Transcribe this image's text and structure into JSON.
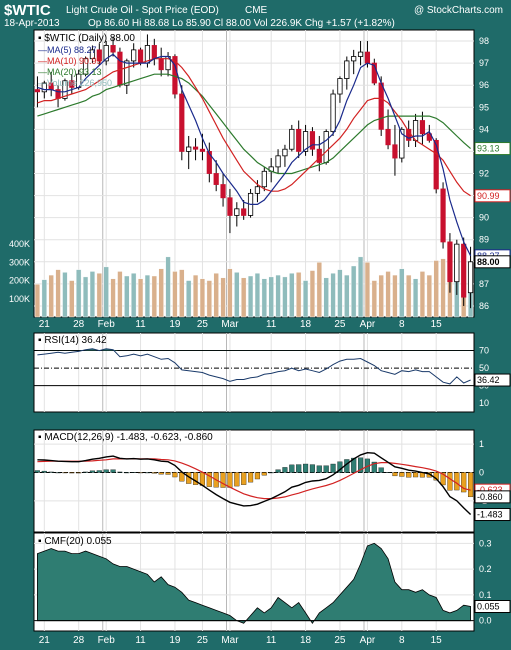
{
  "header": {
    "symbol": "$WTIC",
    "name": "Light Crude Oil - Spot Price (EOD)",
    "exchange": "CME",
    "watermark": "@ StockCharts.com",
    "date": "18-Apr-2013",
    "ohlc": "Op 86.60  Hi 88.68  Lo 85.90  Cl 88.00  Vol 226.9K  Chg +1.57 (+1.82%)"
  },
  "colors": {
    "background": "#1f6b69",
    "panel": "#ffffff",
    "up_candle": "#ffffff",
    "down_candle": "#c8102e",
    "ma5": "#1a2a8c",
    "ma10": "#d22222",
    "ma20": "#2d7a2d",
    "volume_up": "#8fbcbc",
    "volume_down": "#d9b08c",
    "macd_hist": "#e8a020",
    "cmf_fill": "#2f7d72",
    "rsi_line": "#1a3a6a"
  },
  "chart_data": [
    {
      "type": "candlestick",
      "title": "$WTIC (Daily) 88.00",
      "legend": [
        {
          "label": "MA(5) 88.27",
          "color": "#1a2a8c"
        },
        {
          "label": "MA(10) 90.99",
          "color": "#d22222"
        },
        {
          "label": "MA(20) 93.13",
          "color": "#2d7a2d"
        },
        {
          "label": "Volume 226,950",
          "color": "#8fbcbc"
        }
      ],
      "ylim": [
        85.5,
        98.5
      ],
      "y_ticks": [
        86,
        87,
        88,
        89,
        90,
        91,
        92,
        93,
        94,
        95,
        96,
        97,
        98
      ],
      "right_labels": [
        {
          "value": 93.13,
          "text": "93.13",
          "color": "#2d7a2d"
        },
        {
          "value": 90.99,
          "text": "90.99",
          "color": "#d22222"
        },
        {
          "value": 88.27,
          "text": "88.27",
          "color": "#1a2a8c"
        },
        {
          "value": 88.0,
          "text": "88.00",
          "color": "#000000"
        }
      ],
      "x_ticks": [
        {
          "i": 1,
          "label": "21"
        },
        {
          "i": 6,
          "label": "28"
        },
        {
          "i": 10,
          "label": "Feb"
        },
        {
          "i": 15,
          "label": "11"
        },
        {
          "i": 20,
          "label": "19"
        },
        {
          "i": 24,
          "label": "25"
        },
        {
          "i": 28,
          "label": "Mar"
        },
        {
          "i": 34,
          "label": "11"
        },
        {
          "i": 39,
          "label": "18"
        },
        {
          "i": 44,
          "label": "25"
        },
        {
          "i": 48,
          "label": "Apr"
        },
        {
          "i": 53,
          "label": "8"
        },
        {
          "i": 58,
          "label": "15"
        }
      ],
      "month_lines": [
        10,
        28,
        48
      ],
      "candles": [
        [
          95.8,
          96.4,
          95.0,
          95.7
        ],
        [
          95.7,
          96.2,
          95.4,
          96.1
        ],
        [
          96.1,
          96.6,
          95.5,
          95.8
        ],
        [
          95.8,
          96.0,
          95.0,
          95.4
        ],
        [
          95.4,
          96.3,
          95.3,
          96.2
        ],
        [
          96.2,
          96.5,
          95.6,
          95.9
        ],
        [
          95.9,
          96.7,
          95.8,
          96.5
        ],
        [
          96.5,
          97.3,
          96.4,
          97.2
        ],
        [
          97.2,
          97.8,
          97.0,
          97.6
        ],
        [
          97.6,
          97.9,
          96.9,
          97.1
        ],
        [
          97.1,
          98.0,
          96.9,
          97.8
        ],
        [
          97.8,
          98.2,
          97.3,
          97.5
        ],
        [
          97.5,
          97.7,
          95.9,
          96.0
        ],
        [
          96.0,
          97.2,
          95.6,
          97.1
        ],
        [
          97.1,
          97.9,
          96.8,
          97.6
        ],
        [
          97.6,
          97.7,
          96.9,
          97.0
        ],
        [
          97.0,
          98.3,
          96.8,
          97.8
        ],
        [
          97.8,
          98.1,
          96.9,
          97.2
        ],
        [
          97.2,
          97.7,
          96.4,
          96.7
        ],
        [
          96.7,
          97.5,
          96.4,
          97.3
        ],
        [
          97.3,
          97.4,
          95.4,
          95.6
        ],
        [
          95.6,
          96.0,
          92.6,
          93.0
        ],
        [
          93.0,
          93.7,
          92.2,
          93.2
        ],
        [
          93.2,
          93.6,
          92.6,
          93.1
        ],
        [
          93.1,
          93.8,
          92.6,
          93.0
        ],
        [
          93.0,
          93.4,
          91.6,
          92.0
        ],
        [
          92.0,
          92.6,
          91.2,
          91.5
        ],
        [
          91.5,
          92.0,
          90.5,
          90.9
        ],
        [
          90.9,
          91.3,
          89.3,
          90.1
        ],
        [
          90.1,
          90.7,
          89.6,
          90.4
        ],
        [
          90.4,
          90.8,
          89.9,
          90.1
        ],
        [
          90.1,
          91.3,
          90.0,
          91.1
        ],
        [
          91.1,
          91.7,
          90.7,
          91.4
        ],
        [
          91.4,
          92.3,
          91.2,
          92.1
        ],
        [
          92.1,
          92.7,
          91.6,
          92.3
        ],
        [
          92.3,
          93.1,
          92.0,
          92.8
        ],
        [
          92.8,
          93.3,
          92.3,
          93.1
        ],
        [
          93.1,
          94.2,
          93.0,
          94.0
        ],
        [
          94.0,
          94.4,
          92.7,
          93.0
        ],
        [
          93.0,
          94.2,
          92.8,
          93.9
        ],
        [
          93.9,
          94.1,
          92.8,
          93.1
        ],
        [
          93.1,
          93.7,
          92.1,
          92.5
        ],
        [
          92.5,
          94.0,
          92.4,
          93.9
        ],
        [
          93.9,
          95.8,
          93.7,
          95.6
        ],
        [
          95.6,
          96.4,
          95.2,
          96.3
        ],
        [
          96.3,
          97.3,
          95.8,
          97.1
        ],
        [
          97.1,
          97.6,
          96.5,
          97.3
        ],
        [
          97.3,
          98.0,
          96.9,
          97.5
        ],
        [
          97.5,
          98.0,
          96.8,
          97.0
        ],
        [
          97.0,
          97.2,
          96.0,
          96.1
        ],
        [
          96.1,
          96.4,
          93.7,
          94.0
        ],
        [
          94.0,
          94.9,
          93.1,
          93.3
        ],
        [
          93.3,
          94.2,
          91.9,
          92.7
        ],
        [
          92.7,
          94.1,
          92.5,
          94.0
        ],
        [
          94.0,
          94.4,
          93.2,
          93.5
        ],
        [
          93.5,
          94.7,
          93.2,
          94.4
        ],
        [
          94.4,
          94.8,
          93.3,
          93.8
        ],
        [
          93.8,
          94.2,
          93.4,
          93.5
        ],
        [
          93.5,
          93.6,
          91.1,
          91.3
        ],
        [
          91.3,
          91.6,
          88.6,
          88.9
        ],
        [
          88.9,
          89.3,
          86.6,
          87.1
        ],
        [
          87.1,
          89.0,
          86.5,
          88.8
        ],
        [
          88.8,
          89.1,
          86.0,
          86.4
        ],
        [
          86.6,
          88.68,
          85.9,
          88.0
        ]
      ],
      "ma5": [
        95.9,
        95.8,
        95.8,
        95.7,
        95.7,
        95.8,
        95.9,
        96.3,
        96.6,
        96.9,
        97.2,
        97.4,
        97.1,
        97.0,
        97.0,
        97.0,
        97.0,
        97.2,
        97.3,
        97.3,
        96.9,
        95.8,
        95.1,
        94.4,
        93.6,
        92.9,
        92.5,
        92.0,
        91.6,
        91.2,
        90.7,
        90.6,
        90.6,
        90.8,
        91.2,
        91.6,
        92.0,
        92.5,
        92.8,
        93.1,
        93.3,
        93.3,
        93.5,
        93.8,
        94.4,
        95.3,
        96.0,
        96.8,
        97.0,
        96.9,
        96.1,
        95.4,
        94.6,
        93.8,
        93.6,
        93.7,
        93.7,
        93.9,
        93.3,
        92.2,
        90.8,
        89.8,
        88.9,
        88.27
      ],
      "ma10": [
        95.2,
        95.3,
        95.3,
        95.4,
        95.5,
        95.6,
        95.7,
        95.8,
        96.0,
        96.2,
        96.4,
        96.6,
        96.7,
        96.8,
        96.9,
        97.0,
        97.1,
        97.2,
        97.2,
        97.2,
        97.1,
        96.8,
        96.4,
        95.9,
        95.4,
        94.8,
        94.2,
        93.6,
        93.1,
        92.6,
        92.1,
        91.8,
        91.5,
        91.3,
        91.2,
        91.2,
        91.3,
        91.5,
        91.8,
        92.1,
        92.4,
        92.7,
        93.0,
        93.3,
        93.6,
        94.0,
        94.5,
        94.9,
        95.3,
        95.4,
        95.4,
        95.2,
        94.8,
        94.4,
        93.9,
        93.5,
        93.3,
        93.1,
        92.9,
        92.6,
        92.1,
        91.6,
        91.2,
        90.99
      ],
      "ma20": [
        94.6,
        94.7,
        94.8,
        94.9,
        95.0,
        95.1,
        95.2,
        95.3,
        95.5,
        95.6,
        95.8,
        95.9,
        96.0,
        96.1,
        96.2,
        96.3,
        96.4,
        96.5,
        96.5,
        96.5,
        96.4,
        96.3,
        96.1,
        95.8,
        95.5,
        95.1,
        94.7,
        94.3,
        93.9,
        93.5,
        93.1,
        92.8,
        92.5,
        92.3,
        92.1,
        92.0,
        92.0,
        92.0,
        92.1,
        92.2,
        92.3,
        92.4,
        92.5,
        92.7,
        93.0,
        93.3,
        93.6,
        93.9,
        94.2,
        94.4,
        94.5,
        94.6,
        94.6,
        94.6,
        94.6,
        94.6,
        94.6,
        94.6,
        94.5,
        94.3,
        94.0,
        93.7,
        93.4,
        93.13
      ]
    },
    {
      "type": "bar",
      "title": "Volume",
      "ylim": [
        0,
        450000
      ],
      "y_ticks": [
        {
          "value": 100000,
          "label": "100K"
        },
        {
          "value": 200000,
          "label": "200K"
        },
        {
          "value": 300000,
          "label": "300K"
        },
        {
          "value": 400000,
          "label": "400K"
        }
      ],
      "values": [
        180000,
        205000,
        230000,
        260000,
        245000,
        200000,
        260000,
        220000,
        250000,
        240000,
        275000,
        210000,
        250000,
        225000,
        240000,
        210000,
        230000,
        225000,
        265000,
        330000,
        250000,
        260000,
        200000,
        230000,
        210000,
        200000,
        240000,
        215000,
        265000,
        245000,
        215000,
        225000,
        240000,
        210000,
        220000,
        230000,
        220000,
        240000,
        245000,
        200000,
        255000,
        300000,
        215000,
        240000,
        260000,
        230000,
        280000,
        330000,
        300000,
        200000,
        230000,
        250000,
        230000,
        265000,
        230000,
        210000,
        250000,
        230000,
        310000,
        320000,
        265000,
        275000,
        290000,
        226950
      ]
    },
    {
      "type": "line",
      "title": "RSI(14) 36.42",
      "ylim": [
        0,
        90
      ],
      "y_ticks": [
        10,
        30,
        50,
        70
      ],
      "reference_lines": [
        30,
        50,
        70
      ],
      "last_label": "36.42",
      "values": [
        65,
        66,
        67,
        68,
        67,
        68,
        69,
        71,
        72,
        70,
        72,
        71,
        63,
        64,
        66,
        64,
        66,
        63,
        60,
        61,
        56,
        48,
        47,
        46,
        45,
        42,
        40,
        38,
        35,
        37,
        37,
        39,
        40,
        43,
        44,
        46,
        47,
        50,
        47,
        49,
        47,
        45,
        49,
        54,
        58,
        60,
        60,
        61,
        57,
        53,
        47,
        45,
        43,
        47,
        46,
        48,
        46,
        46,
        40,
        34,
        32,
        40,
        33,
        36.42
      ]
    },
    {
      "type": "bar+line",
      "title": "MACD(12,26,9) -1.483, -0.623, -0.860",
      "ylim": [
        -2.1,
        1.5
      ],
      "y_ticks": [
        -1,
        0,
        1
      ],
      "right_labels": [
        {
          "value": -0.623,
          "text": "-0.623",
          "color": "#d22222"
        },
        {
          "value": -0.86,
          "text": "-0.860",
          "color": "#000000"
        },
        {
          "value": -1.483,
          "text": "-1.483",
          "color": "#000000"
        }
      ],
      "macd": [
        0.45,
        0.44,
        0.42,
        0.4,
        0.39,
        0.38,
        0.38,
        0.42,
        0.47,
        0.5,
        0.55,
        0.58,
        0.5,
        0.48,
        0.49,
        0.47,
        0.48,
        0.45,
        0.4,
        0.38,
        0.25,
        0.02,
        -0.15,
        -0.3,
        -0.45,
        -0.62,
        -0.78,
        -0.92,
        -1.05,
        -1.12,
        -1.18,
        -1.17,
        -1.12,
        -1.02,
        -0.92,
        -0.8,
        -0.68,
        -0.52,
        -0.45,
        -0.35,
        -0.3,
        -0.28,
        -0.22,
        -0.08,
        0.1,
        0.3,
        0.48,
        0.62,
        0.7,
        0.68,
        0.52,
        0.36,
        0.2,
        0.15,
        0.08,
        0.05,
        0.0,
        -0.05,
        -0.22,
        -0.5,
        -0.85,
        -1.0,
        -1.25,
        -1.483
      ],
      "signal": [
        0.38,
        0.39,
        0.4,
        0.4,
        0.4,
        0.4,
        0.4,
        0.4,
        0.41,
        0.43,
        0.45,
        0.48,
        0.48,
        0.48,
        0.48,
        0.48,
        0.48,
        0.48,
        0.46,
        0.45,
        0.41,
        0.33,
        0.24,
        0.13,
        0.01,
        -0.12,
        -0.26,
        -0.39,
        -0.52,
        -0.64,
        -0.75,
        -0.83,
        -0.89,
        -0.92,
        -0.92,
        -0.9,
        -0.86,
        -0.79,
        -0.73,
        -0.65,
        -0.58,
        -0.52,
        -0.46,
        -0.38,
        -0.28,
        -0.16,
        -0.03,
        0.1,
        0.22,
        0.31,
        0.35,
        0.35,
        0.32,
        0.29,
        0.25,
        0.21,
        0.17,
        0.12,
        0.05,
        -0.06,
        -0.22,
        -0.38,
        -0.56,
        -0.623
      ],
      "histogram": [
        0.07,
        0.05,
        0.02,
        0.0,
        -0.01,
        -0.02,
        -0.02,
        0.02,
        0.06,
        0.07,
        0.1,
        0.1,
        0.02,
        0.0,
        0.01,
        -0.01,
        0.0,
        -0.03,
        -0.06,
        -0.07,
        -0.16,
        -0.31,
        -0.39,
        -0.43,
        -0.46,
        -0.5,
        -0.52,
        -0.53,
        -0.53,
        -0.48,
        -0.43,
        -0.34,
        -0.23,
        -0.1,
        0.0,
        0.1,
        0.18,
        0.27,
        0.28,
        0.3,
        0.28,
        0.24,
        0.24,
        0.3,
        0.38,
        0.46,
        0.51,
        0.52,
        0.48,
        0.37,
        0.17,
        0.01,
        -0.12,
        -0.14,
        -0.17,
        -0.16,
        -0.17,
        -0.17,
        -0.27,
        -0.44,
        -0.63,
        -0.62,
        -0.69,
        -0.86
      ]
    },
    {
      "type": "area",
      "title": "CMF(20) 0.055",
      "ylim": [
        -0.04,
        0.34
      ],
      "y_ticks": [
        0.0,
        0.1,
        0.2,
        0.3
      ],
      "last_label": "0.055",
      "values": [
        0.26,
        0.27,
        0.28,
        0.27,
        0.27,
        0.26,
        0.26,
        0.27,
        0.26,
        0.25,
        0.24,
        0.22,
        0.21,
        0.21,
        0.2,
        0.19,
        0.18,
        0.15,
        0.17,
        0.14,
        0.13,
        0.11,
        0.08,
        0.07,
        0.06,
        0.05,
        0.04,
        0.03,
        0.02,
        0.0,
        -0.01,
        0.02,
        0.05,
        0.03,
        0.05,
        0.09,
        0.07,
        0.05,
        0.07,
        0.03,
        -0.01,
        0.03,
        0.05,
        0.07,
        0.1,
        0.13,
        0.16,
        0.22,
        0.29,
        0.3,
        0.28,
        0.24,
        0.15,
        0.12,
        0.12,
        0.11,
        0.12,
        0.1,
        0.09,
        0.04,
        0.03,
        0.04,
        0.06,
        0.055
      ]
    }
  ]
}
